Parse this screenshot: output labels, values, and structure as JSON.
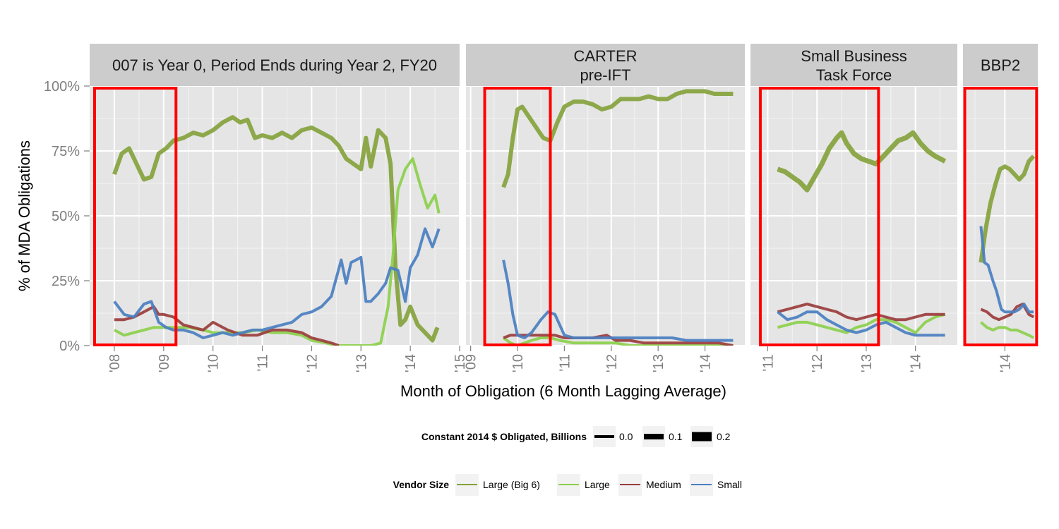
{
  "chart_data": {
    "type": "line",
    "xlabel": "Month of Obligation (6 Month Lagging Average)",
    "ylabel": "% of  MDA  Obligations",
    "ylim": [
      0,
      100
    ],
    "yticks": [
      "0%",
      "25%",
      "50%",
      "75%",
      "100%"
    ],
    "grid": true,
    "colors": {
      "Large (Big 6)": "#86a33d",
      "Large": "#8cd04c",
      "Medium": "#9b3d3d",
      "Small": "#4a7fc1",
      "highlight": "#ff0000"
    },
    "panels": [
      {
        "strip": [
          "007 is Year 0, Period Ends during Year 2, FY20"
        ],
        "xlim": [
          2007.5,
          2015.0
        ],
        "xticks": [
          "'08",
          "'09",
          "'10",
          "'11",
          "'12",
          "'13",
          "'14",
          "'15"
        ],
        "xtick_values": [
          2008,
          2009,
          2010,
          2011,
          2012,
          2013,
          2014,
          2015
        ],
        "highlight": [
          2007.6,
          2009.25
        ],
        "series": [
          {
            "name": "Large (Big 6)",
            "width": 6,
            "x": [
              2008.0,
              2008.15,
              2008.3,
              2008.45,
              2008.6,
              2008.75,
              2008.9,
              2009.05,
              2009.2,
              2009.4,
              2009.6,
              2009.8,
              2010.0,
              2010.2,
              2010.4,
              2010.55,
              2010.7,
              2010.85,
              2011.0,
              2011.2,
              2011.4,
              2011.6,
              2011.8,
              2012.0,
              2012.2,
              2012.4,
              2012.55,
              2012.7,
              2012.85,
              2013.0,
              2013.1,
              2013.2,
              2013.35,
              2013.5,
              2013.6,
              2013.7,
              2013.8,
              2013.9,
              2014.0,
              2014.15,
              2014.3,
              2014.45,
              2014.55
            ],
            "y": [
              66,
              74,
              76,
              70,
              64,
              65,
              74,
              76,
              79,
              80,
              82,
              81,
              83,
              86,
              88,
              86,
              87,
              80,
              81,
              80,
              82,
              80,
              83,
              84,
              82,
              80,
              77,
              72,
              70,
              68,
              80,
              69,
              83,
              80,
              70,
              30,
              8,
              10,
              15,
              8,
              5,
              2,
              7
            ]
          },
          {
            "name": "Large",
            "width": 4,
            "x": [
              2008.0,
              2008.2,
              2008.4,
              2008.6,
              2008.8,
              2009.0,
              2009.2,
              2009.5,
              2009.8,
              2010.0,
              2010.3,
              2010.6,
              2010.9,
              2011.2,
              2011.5,
              2011.8,
              2012.0,
              2012.3,
              2012.5,
              2012.8,
              2013.0,
              2013.2,
              2013.4,
              2013.55,
              2013.65,
              2013.75,
              2013.9,
              2014.05,
              2014.2,
              2014.35,
              2014.5,
              2014.58
            ],
            "y": [
              6,
              4,
              5,
              6,
              7,
              7,
              7,
              7,
              6,
              5,
              5,
              5,
              6,
              5,
              5,
              4,
              2,
              1,
              0,
              0,
              0,
              0,
              1,
              15,
              35,
              60,
              68,
              72,
              62,
              53,
              58,
              51
            ]
          },
          {
            "name": "Medium",
            "width": 4,
            "x": [
              2008.0,
              2008.2,
              2008.4,
              2008.6,
              2008.8,
              2008.9,
              2009.0,
              2009.2,
              2009.4,
              2009.6,
              2009.8,
              2010.0,
              2010.3,
              2010.6,
              2010.9,
              2011.2,
              2011.5,
              2011.8,
              2012.0,
              2012.2,
              2012.4,
              2012.55
            ],
            "y": [
              10,
              10,
              11,
              13,
              15,
              12,
              12,
              11,
              8,
              7,
              6,
              9,
              6,
              4,
              4,
              6,
              6,
              5,
              3,
              2,
              1,
              0
            ]
          },
          {
            "name": "Small",
            "width": 4,
            "x": [
              2008.0,
              2008.2,
              2008.4,
              2008.6,
              2008.75,
              2008.9,
              2009.05,
              2009.2,
              2009.4,
              2009.6,
              2009.8,
              2010.0,
              2010.2,
              2010.4,
              2010.6,
              2010.8,
              2011.0,
              2011.2,
              2011.4,
              2011.6,
              2011.8,
              2012.0,
              2012.2,
              2012.4,
              2012.6,
              2012.7,
              2012.8,
              2012.9,
              2013.0,
              2013.1,
              2013.2,
              2013.35,
              2013.5,
              2013.6,
              2013.75,
              2013.9,
              2014.0,
              2014.15,
              2014.3,
              2014.45,
              2014.58
            ],
            "y": [
              17,
              12,
              11,
              16,
              17,
              9,
              7,
              6,
              6,
              5,
              3,
              4,
              5,
              4,
              5,
              6,
              6,
              7,
              8,
              9,
              12,
              13,
              15,
              19,
              33,
              24,
              32,
              33,
              34,
              17,
              17,
              20,
              24,
              30,
              29,
              17,
              30,
              35,
              45,
              38,
              45
            ]
          }
        ]
      },
      {
        "strip": [
          "CARTER",
          "pre-IFT"
        ],
        "xlim": [
          2008.9,
          2014.85
        ],
        "xticks": [
          "'09",
          "'10",
          "'11",
          "'12",
          "'13",
          "'14"
        ],
        "xtick_values": [
          2009,
          2010,
          2011,
          2012,
          2013,
          2014
        ],
        "highlight": [
          2009.3,
          2010.7
        ],
        "series": [
          {
            "name": "Large (Big 6)",
            "width": 6,
            "x": [
              2009.7,
              2009.8,
              2009.9,
              2010.0,
              2010.1,
              2010.25,
              2010.4,
              2010.55,
              2010.7,
              2010.85,
              2011.0,
              2011.2,
              2011.4,
              2011.6,
              2011.8,
              2012.0,
              2012.2,
              2012.4,
              2012.6,
              2012.8,
              2013.0,
              2013.2,
              2013.4,
              2013.6,
              2013.8,
              2014.0,
              2014.2,
              2014.4,
              2014.6
            ],
            "y": [
              61,
              66,
              80,
              91,
              92,
              88,
              84,
              80,
              79,
              86,
              92,
              94,
              94,
              93,
              91,
              92,
              95,
              95,
              95,
              96,
              95,
              95,
              97,
              98,
              98,
              98,
              97,
              97,
              97
            ]
          },
          {
            "name": "Large",
            "width": 4,
            "x": [
              2009.7,
              2009.85,
              2010.0,
              2010.15,
              2010.3,
              2010.5,
              2010.7,
              2010.9,
              2011.2,
              2011.5,
              2011.8,
              2012.1,
              2012.4,
              2012.8,
              2013.2,
              2013.6,
              2014.0,
              2014.3,
              2014.6
            ],
            "y": [
              3,
              1,
              0,
              1,
              2,
              3,
              3,
              2,
              1,
              1,
              1,
              1,
              0,
              0,
              0,
              0,
              0,
              0,
              0
            ]
          },
          {
            "name": "Medium",
            "width": 4,
            "x": [
              2009.7,
              2009.85,
              2010.0,
              2010.2,
              2010.4,
              2010.6,
              2010.8,
              2011.0,
              2011.3,
              2011.6,
              2011.9,
              2012.1,
              2012.4,
              2012.7,
              2013.0,
              2013.3,
              2013.6,
              2014.0,
              2014.3,
              2014.6
            ],
            "y": [
              3,
              4,
              4,
              4,
              4,
              4,
              4,
              3,
              3,
              3,
              4,
              2,
              2,
              1,
              1,
              1,
              1,
              1,
              1,
              0
            ]
          },
          {
            "name": "Small",
            "width": 4,
            "x": [
              2009.7,
              2009.8,
              2009.9,
              2010.0,
              2010.15,
              2010.3,
              2010.5,
              2010.65,
              2010.8,
              2011.0,
              2011.2,
              2011.5,
              2011.8,
              2012.1,
              2012.4,
              2012.7,
              2013.0,
              2013.3,
              2013.6,
              2014.0,
              2014.3,
              2014.6
            ],
            "y": [
              33,
              24,
              12,
              4,
              3,
              5,
              10,
              13,
              12,
              4,
              3,
              3,
              3,
              3,
              3,
              3,
              3,
              3,
              2,
              2,
              2,
              2
            ]
          }
        ]
      },
      {
        "strip": [
          "Small Business",
          "Task Force"
        ],
        "xlim": [
          2010.65,
          2014.85
        ],
        "xticks": [
          "'11",
          "'12",
          "'13",
          "'14"
        ],
        "xtick_values": [
          2011,
          2012,
          2013,
          2014
        ],
        "highlight": [
          2010.85,
          2013.25
        ],
        "series": [
          {
            "name": "Large (Big 6)",
            "width": 7,
            "x": [
              2011.2,
              2011.35,
              2011.5,
              2011.65,
              2011.8,
              2011.95,
              2012.1,
              2012.25,
              2012.4,
              2012.5,
              2012.6,
              2012.75,
              2012.9,
              2013.05,
              2013.2,
              2013.35,
              2013.5,
              2013.65,
              2013.8,
              2013.95,
              2014.1,
              2014.25,
              2014.4,
              2014.6
            ],
            "y": [
              68,
              67,
              65,
              63,
              60,
              65,
              70,
              76,
              80,
              82,
              78,
              74,
              72,
              71,
              70,
              73,
              76,
              79,
              80,
              82,
              78,
              75,
              73,
              71
            ]
          },
          {
            "name": "Large",
            "width": 4,
            "x": [
              2011.2,
              2011.4,
              2011.6,
              2011.8,
              2012.0,
              2012.2,
              2012.4,
              2012.6,
              2012.8,
              2013.0,
              2013.2,
              2013.4,
              2013.6,
              2013.8,
              2014.0,
              2014.2,
              2014.4,
              2014.6
            ],
            "y": [
              7,
              8,
              9,
              9,
              8,
              7,
              6,
              5,
              7,
              8,
              10,
              10,
              9,
              7,
              5,
              9,
              11,
              12
            ]
          },
          {
            "name": "Medium",
            "width": 4,
            "x": [
              2011.2,
              2011.4,
              2011.6,
              2011.8,
              2012.0,
              2012.2,
              2012.4,
              2012.6,
              2012.8,
              2013.0,
              2013.2,
              2013.4,
              2013.6,
              2013.8,
              2014.0,
              2014.2,
              2014.4,
              2014.6
            ],
            "y": [
              13,
              14,
              15,
              16,
              15,
              14,
              13,
              11,
              10,
              11,
              12,
              11,
              10,
              10,
              11,
              12,
              12,
              12
            ]
          },
          {
            "name": "Small",
            "width": 4,
            "x": [
              2011.2,
              2011.4,
              2011.6,
              2011.8,
              2012.0,
              2012.2,
              2012.4,
              2012.6,
              2012.8,
              2013.0,
              2013.2,
              2013.4,
              2013.6,
              2013.8,
              2014.0,
              2014.2,
              2014.4,
              2014.6
            ],
            "y": [
              13,
              10,
              11,
              13,
              13,
              10,
              8,
              6,
              5,
              6,
              8,
              9,
              7,
              5,
              4,
              4,
              4,
              4
            ]
          }
        ]
      },
      {
        "strip": [
          "BBP2"
        ],
        "xlim": [
          2013.3,
          2014.55
        ],
        "xticks": [
          "'14"
        ],
        "xtick_values": [
          2014
        ],
        "highlight": [
          2013.33,
          2014.53
        ],
        "series": [
          {
            "name": "Large (Big 6)",
            "width": 6,
            "x": [
              2013.6,
              2013.68,
              2013.76,
              2013.84,
              2013.92,
              2014.0,
              2014.08,
              2014.16,
              2014.24,
              2014.32,
              2014.4,
              2014.48
            ],
            "y": [
              32,
              45,
              55,
              62,
              68,
              69,
              68,
              66,
              64,
              66,
              71,
              73
            ]
          },
          {
            "name": "Large",
            "width": 4,
            "x": [
              2013.6,
              2013.7,
              2013.8,
              2013.9,
              2014.0,
              2014.1,
              2014.2,
              2014.3,
              2014.4,
              2014.48
            ],
            "y": [
              9,
              7,
              6,
              7,
              7,
              6,
              6,
              5,
              4,
              3
            ]
          },
          {
            "name": "Medium",
            "width": 4,
            "x": [
              2013.6,
              2013.7,
              2013.8,
              2013.9,
              2014.0,
              2014.1,
              2014.2,
              2014.3,
              2014.4,
              2014.48
            ],
            "y": [
              14,
              13,
              11,
              10,
              11,
              12,
              15,
              16,
              12,
              11
            ]
          },
          {
            "name": "Small",
            "width": 4,
            "x": [
              2013.6,
              2013.66,
              2013.72,
              2013.8,
              2013.86,
              2013.94,
              2014.0,
              2014.08,
              2014.16,
              2014.24,
              2014.32,
              2014.4,
              2014.48
            ],
            "y": [
              46,
              32,
              31,
              25,
              21,
              14,
              13,
              13,
              13,
              14,
              16,
              13,
              13
            ]
          }
        ]
      }
    ],
    "legend_size": {
      "title": "Constant 2014 $ Obligated, Billions",
      "entries": [
        "0.0",
        "0.1",
        "0.2"
      ]
    },
    "legend_vendor": {
      "title": "Vendor Size",
      "entries": [
        "Large (Big 6)",
        "Large",
        "Medium",
        "Small"
      ]
    }
  }
}
